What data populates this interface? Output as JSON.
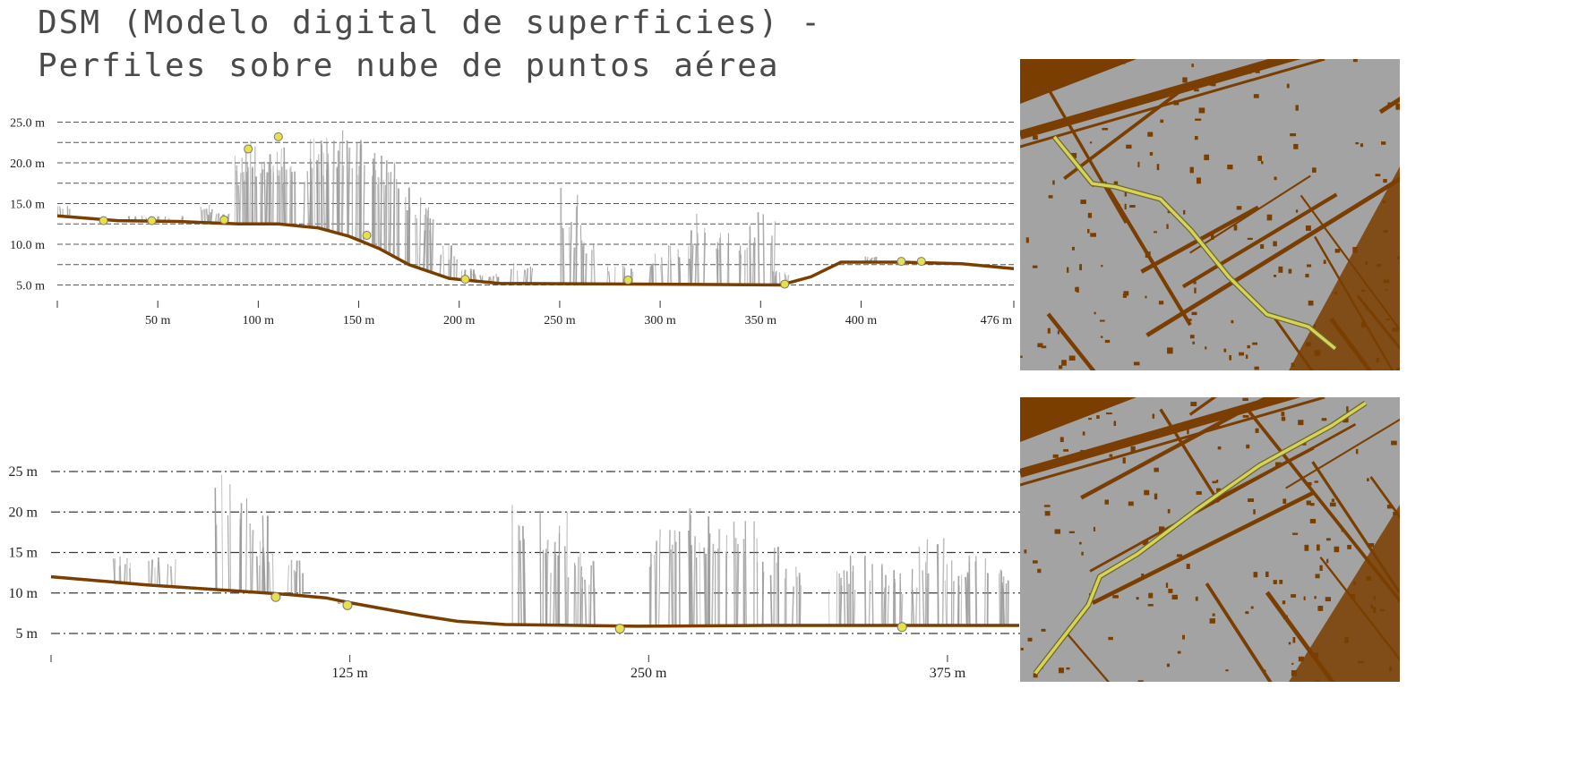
{
  "title": "DSM (Modelo digital de superficies) - Perfiles sobre nube de puntos aérea",
  "colors": {
    "ground": "#7a3e00",
    "cloud": "#9a9a9a",
    "marker": "#e8e04a",
    "map_bg": "#a3a3a3",
    "map_dark": "#7a3e00",
    "route": "#d8d25a"
  },
  "chart_data": [
    {
      "type": "line",
      "title": "",
      "xlabel": "",
      "ylabel": "",
      "xlim": [
        0,
        476
      ],
      "ylim": [
        2.5,
        26
      ],
      "x_ticks": [
        50,
        100,
        150,
        200,
        250,
        300,
        350,
        400,
        476
      ],
      "x_tick_labels": [
        "50 m",
        "100 m",
        "150 m",
        "200 m",
        "250 m",
        "300 m",
        "350 m",
        "400 m",
        "476 m"
      ],
      "y_ticks": [
        5,
        10,
        15,
        20,
        25
      ],
      "y_tick_labels": [
        "5.0 m",
        "10.0 m",
        "15.0 m",
        "20.0 m",
        "25.0 m"
      ],
      "grid_lines": [
        5,
        7.5,
        10,
        12.5,
        15,
        17.5,
        20,
        22.5,
        25
      ],
      "series": [
        {
          "values": [
            [
              0,
              13.5
            ],
            [
              30,
              12.9
            ],
            [
              60,
              12.8
            ],
            [
              90,
              12.5
            ],
            [
              110,
              12.5
            ],
            [
              130,
              12.0
            ],
            [
              145,
              11.0
            ],
            [
              160,
              9.5
            ],
            [
              175,
              7.5
            ],
            [
              195,
              5.8
            ],
            [
              220,
              5.2
            ],
            [
              300,
              5.1
            ],
            [
              360,
              5.0
            ],
            [
              375,
              6.0
            ],
            [
              390,
              7.8
            ],
            [
              420,
              7.8
            ],
            [
              450,
              7.6
            ],
            [
              476,
              7.0
            ]
          ]
        }
      ],
      "clutter": [
        [
          1,
          15
        ],
        [
          40,
          13.5
        ],
        [
          55,
          13.5
        ],
        [
          75,
          15
        ],
        [
          80,
          14
        ],
        [
          92,
          21
        ],
        [
          97,
          23
        ],
        [
          103,
          22
        ],
        [
          108,
          24
        ],
        [
          114,
          21
        ],
        [
          122,
          22
        ],
        [
          130,
          23
        ],
        [
          136,
          24
        ],
        [
          140,
          25
        ],
        [
          148,
          24
        ],
        [
          155,
          23
        ],
        [
          162,
          22
        ],
        [
          170,
          20
        ],
        [
          178,
          17
        ],
        [
          185,
          15
        ],
        [
          195,
          10
        ],
        [
          205,
          7
        ],
        [
          215,
          6.5
        ],
        [
          232,
          8
        ],
        [
          255,
          17
        ],
        [
          262,
          11
        ],
        [
          280,
          7.5
        ],
        [
          300,
          9
        ],
        [
          310,
          10
        ],
        [
          320,
          14
        ],
        [
          330,
          12
        ],
        [
          342,
          11
        ],
        [
          350,
          14
        ],
        [
          360,
          7
        ],
        [
          405,
          8.5
        ],
        [
          435,
          8
        ]
      ],
      "markers": [
        [
          23,
          12.9
        ],
        [
          47,
          12.9
        ],
        [
          83,
          13.0
        ],
        [
          95,
          21.7
        ],
        [
          110,
          23.2
        ],
        [
          154,
          11.1
        ],
        [
          203,
          5.7
        ],
        [
          284,
          5.6
        ],
        [
          362,
          5.1
        ],
        [
          420,
          7.9
        ],
        [
          430,
          7.9
        ]
      ]
    },
    {
      "type": "line",
      "title": "",
      "xlabel": "",
      "ylabel": "",
      "xlim": [
        0,
        405
      ],
      "ylim": [
        3,
        26
      ],
      "x_ticks": [
        125,
        250,
        375
      ],
      "x_tick_labels": [
        "125 m",
        "250 m",
        "375 m"
      ],
      "y_ticks": [
        5,
        10,
        15,
        20,
        25
      ],
      "y_tick_labels": [
        "5 m",
        "10 m",
        "15 m",
        "20 m",
        "25 m"
      ],
      "grid_lines": [
        5,
        10,
        15,
        20,
        25
      ],
      "series": [
        {
          "values": [
            [
              0,
              12.0
            ],
            [
              40,
              11.0
            ],
            [
              75,
              10.3
            ],
            [
              100,
              9.8
            ],
            [
              115,
              9.4
            ],
            [
              125,
              8.8
            ],
            [
              140,
              8.0
            ],
            [
              155,
              7.2
            ],
            [
              170,
              6.5
            ],
            [
              190,
              6.1
            ],
            [
              245,
              5.9
            ],
            [
              300,
              6.0
            ],
            [
              350,
              6.0
            ],
            [
              405,
              6.0
            ]
          ]
        }
      ],
      "clutter": [
        [
          30,
          14.5
        ],
        [
          45,
          14.5
        ],
        [
          75,
          25
        ],
        [
          85,
          20
        ],
        [
          90,
          16
        ],
        [
          102,
          14.5
        ],
        [
          125,
          8.6
        ],
        [
          200,
          23
        ],
        [
          210,
          22
        ],
        [
          215,
          16
        ],
        [
          225,
          14
        ],
        [
          255,
          18
        ],
        [
          265,
          19
        ],
        [
          270,
          21
        ],
        [
          280,
          20
        ],
        [
          290,
          19
        ],
        [
          300,
          17
        ],
        [
          310,
          14
        ],
        [
          330,
          13
        ],
        [
          340,
          15
        ],
        [
          350,
          14
        ],
        [
          362,
          13
        ],
        [
          370,
          17
        ],
        [
          380,
          15
        ],
        [
          390,
          15
        ],
        [
          400,
          14
        ]
      ],
      "markers": [
        [
          94,
          9.5
        ],
        [
          124,
          8.5
        ],
        [
          238,
          5.6
        ],
        [
          356,
          5.8
        ]
      ]
    }
  ],
  "maps": [
    {
      "route": [
        [
          0.09,
          0.25
        ],
        [
          0.19,
          0.4
        ],
        [
          0.25,
          0.41
        ],
        [
          0.37,
          0.45
        ],
        [
          0.45,
          0.55
        ],
        [
          0.55,
          0.7
        ],
        [
          0.65,
          0.82
        ],
        [
          0.76,
          0.86
        ],
        [
          0.83,
          0.93
        ]
      ]
    },
    {
      "route": [
        [
          0.04,
          0.97
        ],
        [
          0.18,
          0.73
        ],
        [
          0.21,
          0.63
        ],
        [
          0.31,
          0.55
        ],
        [
          0.47,
          0.39
        ],
        [
          0.63,
          0.24
        ],
        [
          0.82,
          0.1
        ],
        [
          0.91,
          0.02
        ]
      ]
    }
  ]
}
